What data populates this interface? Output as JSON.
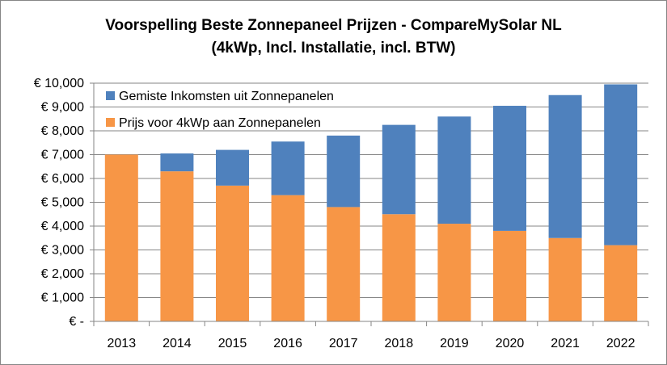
{
  "chart_data": {
    "type": "bar",
    "stacked": true,
    "title_line1": "Voorspelling Beste Zonnepaneel Prijzen - CompareMySolar NL",
    "title_line2": "(4kWp, Incl. Installatie, incl. BTW)",
    "categories": [
      "2013",
      "2014",
      "2015",
      "2016",
      "2017",
      "2018",
      "2019",
      "2020",
      "2021",
      "2022"
    ],
    "series": [
      {
        "name": "Prijs voor 4kWp aan Zonnepanelen",
        "color": "#F79646",
        "values": [
          7000,
          6300,
          5700,
          5300,
          4800,
          4500,
          4100,
          3800,
          3500,
          3200
        ]
      },
      {
        "name": "Gemiste Inkomsten uit Zonnepanelen",
        "color": "#4F81BD",
        "values": [
          0,
          750,
          1500,
          2250,
          3000,
          3750,
          4500,
          5250,
          6000,
          6750
        ]
      }
    ],
    "ylim": [
      0,
      10000
    ],
    "yticks": [
      0,
      1000,
      2000,
      3000,
      4000,
      5000,
      6000,
      7000,
      8000,
      9000,
      10000
    ],
    "ytick_labels": [
      "€ -",
      "€ 1,000",
      "€ 2,000",
      "€ 3,000",
      "€ 4,000",
      "€ 5,000",
      "€ 6,000",
      "€ 7,000",
      "€ 8,000",
      "€ 9,000",
      "€ 10,000"
    ],
    "legend_position": "top-left",
    "grid": true,
    "gridline_color": "#868686",
    "axis_color": "#868686"
  }
}
